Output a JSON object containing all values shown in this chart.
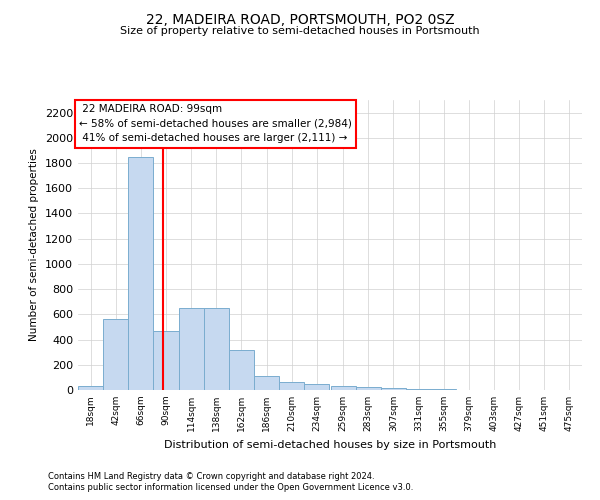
{
  "title": "22, MADEIRA ROAD, PORTSMOUTH, PO2 0SZ",
  "subtitle": "Size of property relative to semi-detached houses in Portsmouth",
  "xlabel": "Distribution of semi-detached houses by size in Portsmouth",
  "ylabel": "Number of semi-detached properties",
  "property_size": 99,
  "property_label": "22 MADEIRA ROAD: 99sqm",
  "pct_smaller": 58,
  "pct_larger": 41,
  "n_smaller": 2984,
  "n_larger": 2111,
  "bin_starts": [
    18,
    42,
    66,
    90,
    114,
    138,
    162,
    186,
    210,
    234,
    259,
    283,
    307,
    331,
    355,
    379,
    403,
    427,
    451,
    475
  ],
  "bin_width": 24,
  "bar_heights": [
    30,
    560,
    1850,
    470,
    650,
    650,
    320,
    110,
    60,
    50,
    28,
    20,
    15,
    10,
    5,
    3,
    2,
    1,
    1,
    0
  ],
  "bar_color": "#c6d9f0",
  "bar_edge_color": "#7aadcf",
  "red_line_x": 99,
  "footnote1": "Contains HM Land Registry data © Crown copyright and database right 2024.",
  "footnote2": "Contains public sector information licensed under the Open Government Licence v3.0.",
  "ylim_max": 2300,
  "yticks": [
    0,
    200,
    400,
    600,
    800,
    1000,
    1200,
    1400,
    1600,
    1800,
    2000,
    2200
  ],
  "xlim_min": 18,
  "xlim_max": 499,
  "background_color": "#ffffff",
  "grid_color": "#d0d0d0",
  "title_fontsize": 10,
  "subtitle_fontsize": 8,
  "ylabel_fontsize": 7.5,
  "xlabel_fontsize": 8,
  "ytick_fontsize": 8,
  "xtick_fontsize": 6.5,
  "annot_fontsize": 7.5,
  "footnote_fontsize": 6
}
